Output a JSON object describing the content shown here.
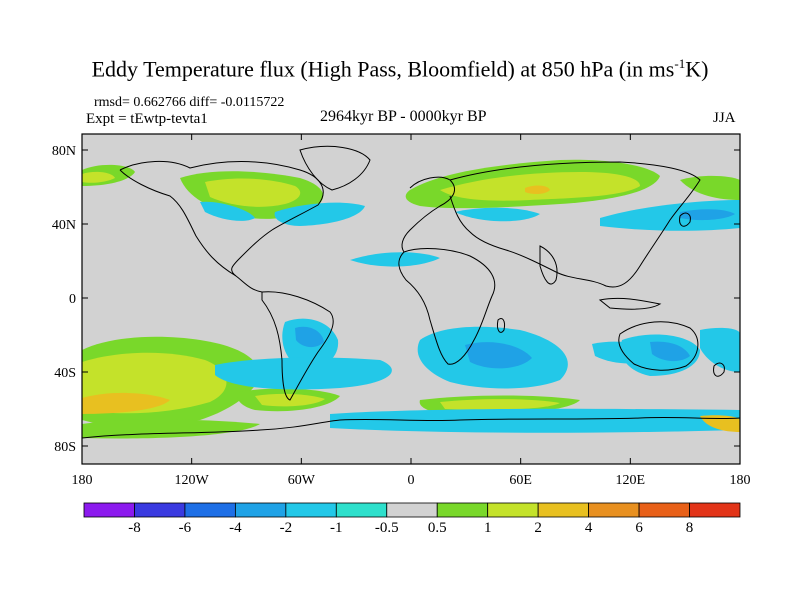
{
  "title_main": "Eddy Temperature flux (High Pass, Bloomfield) at 850 hPa (in ms",
  "title_sup": "-1",
  "title_end": "K)",
  "stats": "rmsd= 0.662766 diff= -0.0115722",
  "experiment": "Expt = tEwtp-tevta1",
  "period": "2964kyr BP - 0000kyr BP",
  "season": "JJA",
  "lat_labels": [
    "80N",
    "40N",
    "0",
    "40S",
    "80S"
  ],
  "lon_labels": [
    "180",
    "120W",
    "60W",
    "0",
    "60E",
    "120E",
    "180"
  ],
  "colorbar": {
    "labels": [
      "-8",
      "-6",
      "-4",
      "-2",
      "-1",
      "-0.5",
      "0.5",
      "1",
      "2",
      "4",
      "6",
      "8"
    ],
    "colors": [
      "#8c1aee",
      "#3a3ae0",
      "#1e6fe6",
      "#1fa2e6",
      "#23c8e8",
      "#2ee0cc",
      "#d2d2d2",
      "#79d82a",
      "#c4e22a",
      "#e8c020",
      "#e89020",
      "#e86018",
      "#e23418"
    ]
  },
  "colors": {
    "background": "#d2d2d2",
    "land_outline": "#000000"
  }
}
